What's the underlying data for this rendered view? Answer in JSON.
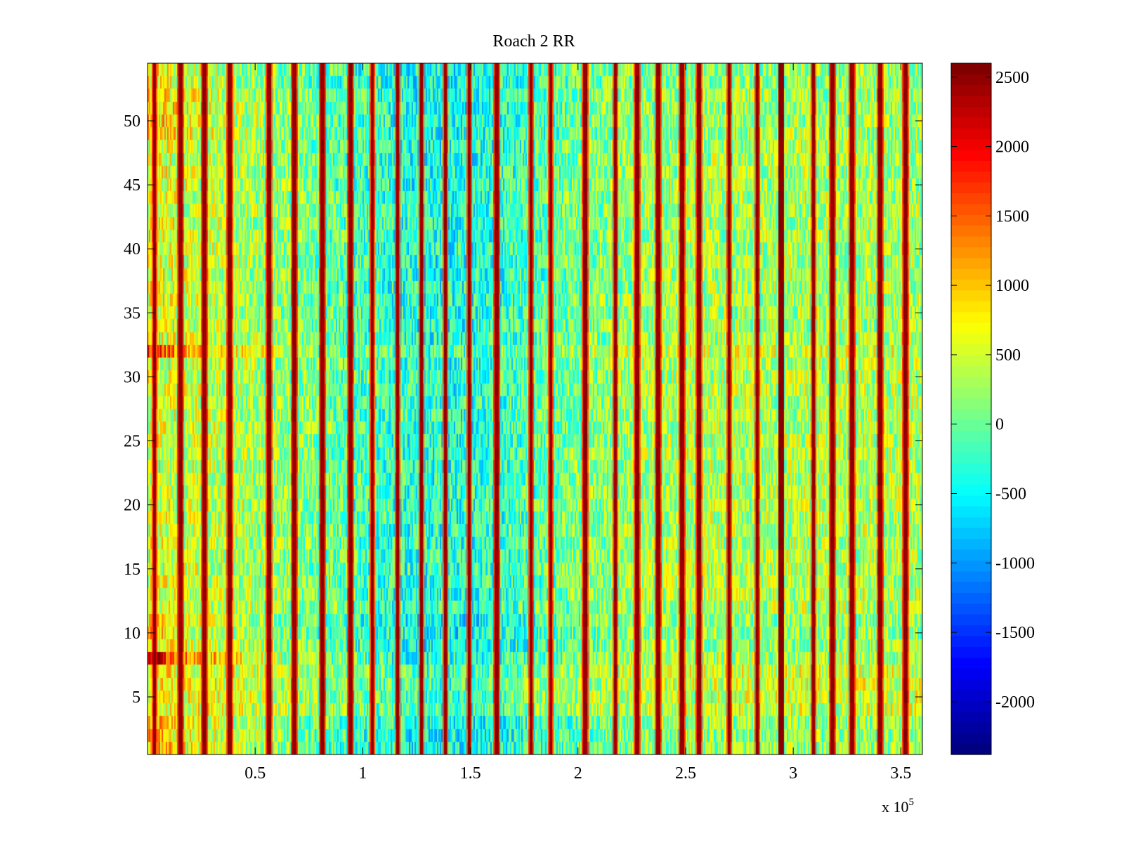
{
  "chart_data": {
    "type": "heatmap",
    "title": "Roach 2 RR",
    "xlabel": "",
    "ylabel": "",
    "x_exponent_label": "x 10",
    "x_exponent": "5",
    "x_range": [
      0,
      360000
    ],
    "y_range": [
      0.5,
      54.5
    ],
    "n_rows": 54,
    "x_ticks": [
      {
        "value": 0.5,
        "label": "0.5"
      },
      {
        "value": 1.0,
        "label": "1"
      },
      {
        "value": 1.5,
        "label": "1.5"
      },
      {
        "value": 2.0,
        "label": "2"
      },
      {
        "value": 2.5,
        "label": "2.5"
      },
      {
        "value": 3.0,
        "label": "3"
      },
      {
        "value": 3.5,
        "label": "3.5"
      }
    ],
    "y_ticks": [
      {
        "value": 5,
        "label": "5"
      },
      {
        "value": 10,
        "label": "10"
      },
      {
        "value": 15,
        "label": "15"
      },
      {
        "value": 20,
        "label": "20"
      },
      {
        "value": 25,
        "label": "25"
      },
      {
        "value": 30,
        "label": "30"
      },
      {
        "value": 35,
        "label": "35"
      },
      {
        "value": 40,
        "label": "40"
      },
      {
        "value": 45,
        "label": "45"
      },
      {
        "value": 50,
        "label": "50"
      }
    ],
    "colorbar": {
      "colormap": "jet",
      "range": [
        -2380,
        2600
      ],
      "ticks": [
        {
          "value": 2500,
          "label": "2500"
        },
        {
          "value": 2000,
          "label": "2000"
        },
        {
          "value": 1500,
          "label": "1500"
        },
        {
          "value": 1000,
          "label": "1000"
        },
        {
          "value": 500,
          "label": "500"
        },
        {
          "value": 0,
          "label": "0"
        },
        {
          "value": -500,
          "label": "-500"
        },
        {
          "value": -1000,
          "label": "-1000"
        },
        {
          "value": -1500,
          "label": "-1500"
        },
        {
          "value": -2000,
          "label": "-2000"
        }
      ]
    },
    "spike_columns_x": [
      3000,
      15000,
      26000,
      38000,
      56000,
      68000,
      81000,
      94000,
      104000,
      116000,
      127000,
      138000,
      149000,
      162000,
      178000,
      187000,
      203000,
      217000,
      227000,
      237000,
      248000,
      256000,
      270000,
      283000,
      294000,
      309000,
      318000,
      327000,
      340000,
      352000
    ],
    "strong_column_x": 294000,
    "row_level_profile": [
      {
        "rows": [
          1,
          3
        ],
        "left": 1200,
        "right": 200
      },
      {
        "rows": [
          4,
          7
        ],
        "left": 900,
        "right": 500
      },
      {
        "rows": [
          8,
          8
        ],
        "left": 2300,
        "right": 300
      },
      {
        "rows": [
          9,
          11
        ],
        "left": 1000,
        "right": 200
      },
      {
        "rows": [
          12,
          31
        ],
        "left": 600,
        "right": 350
      },
      {
        "rows": [
          32,
          32
        ],
        "left": 1900,
        "right": 500
      },
      {
        "rows": [
          33,
          48
        ],
        "left": 700,
        "right": 300
      },
      {
        "rows": [
          49,
          52
        ],
        "left": 1100,
        "right": 250
      },
      {
        "rows": [
          53,
          54
        ],
        "left": 800,
        "right": 200
      }
    ],
    "center_dip": -700
  }
}
